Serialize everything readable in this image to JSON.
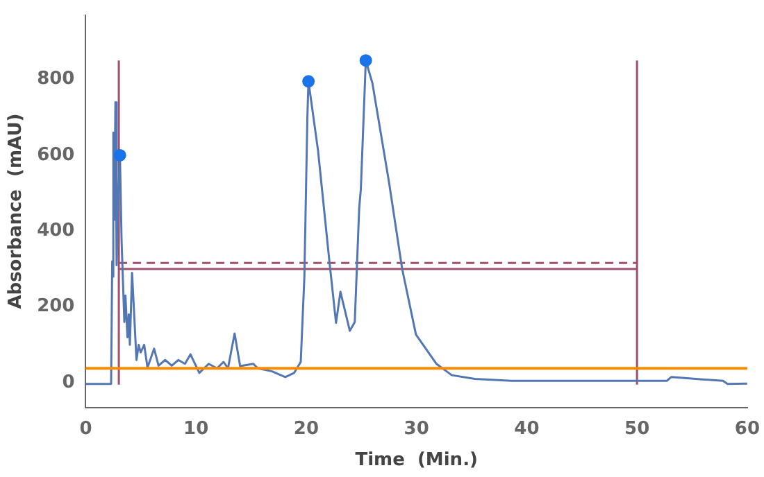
{
  "chart_data": {
    "type": "line",
    "xlabel": "Time  (Min.)",
    "ylabel": "Absorbance  (mAU)",
    "xlim": [
      0,
      60
    ],
    "xticks": [
      0,
      10,
      20,
      30,
      40,
      50,
      60
    ],
    "ylim": [
      -65,
      970
    ],
    "yticks": [
      0,
      200,
      400,
      600,
      800
    ],
    "grid": false,
    "legend": false,
    "marker": "none",
    "line_style": "solid",
    "series": [
      {
        "color": "#5377b3",
        "x": [
          0,
          2.3,
          2.4,
          2.45,
          2.5,
          2.6,
          2.69,
          2.8,
          2.9,
          3.1,
          3.25,
          3.5,
          3.6,
          3.78,
          3.9,
          4.0,
          4.2,
          4.6,
          4.8,
          4.98,
          5.3,
          5.6,
          6.2,
          6.6,
          7.2,
          7.8,
          8.4,
          9.0,
          9.5,
          10.3,
          11.15,
          11.9,
          12.5,
          12.9,
          13.5,
          14.0,
          15.2,
          15.6,
          16.9,
          18.1,
          18.9,
          19.5,
          19.83,
          20.1,
          20.2,
          21.07,
          22.1,
          22.7,
          23.1,
          23.95,
          24.4,
          24.8,
          24.95,
          25.4,
          26.0,
          27.5,
          28.7,
          29.95,
          30.6,
          31.8,
          33.2,
          35.3,
          38.6,
          52.7,
          53.1,
          57.8,
          58.2,
          60
        ],
        "values": [
          -3,
          -3,
          320,
          280,
          660,
          430,
          740,
          310,
          450,
          600,
          374,
          160,
          230,
          120,
          180,
          100,
          290,
          60,
          100,
          80,
          100,
          40,
          90,
          45,
          60,
          45,
          60,
          50,
          75,
          26,
          50,
          38,
          55,
          38,
          130,
          44,
          50,
          38,
          30,
          15,
          26,
          55,
          280,
          700,
          795,
          612,
          320,
          158,
          240,
          137,
          160,
          460,
          510,
          850,
          790,
          530,
          300,
          127,
          100,
          50,
          20,
          10,
          5,
          5,
          15,
          5,
          -3,
          -2
        ]
      },
      {
        "color": "#a0506e",
        "x": [
          3,
          3
        ],
        "values": [
          -5,
          850
        ]
      },
      {
        "color": "#a0506e",
        "x": [
          50,
          50
        ],
        "values": [
          -5,
          850
        ]
      },
      {
        "color": "#a0506e",
        "x": [
          3,
          50
        ],
        "values": [
          300,
          300
        ]
      },
      {
        "color": "#a0506e",
        "line_style": "dashed",
        "x": [
          3,
          50
        ],
        "values": [
          316,
          316
        ]
      },
      {
        "type": "scatter",
        "color": "#1a73e8",
        "marker": "circle",
        "x": [
          3.1,
          20.2,
          25.4
        ],
        "values": [
          600,
          795,
          850
        ]
      }
    ],
    "ref_lines": [
      {
        "axis": "y",
        "value": 38,
        "color": "#ff8c00"
      }
    ]
  }
}
